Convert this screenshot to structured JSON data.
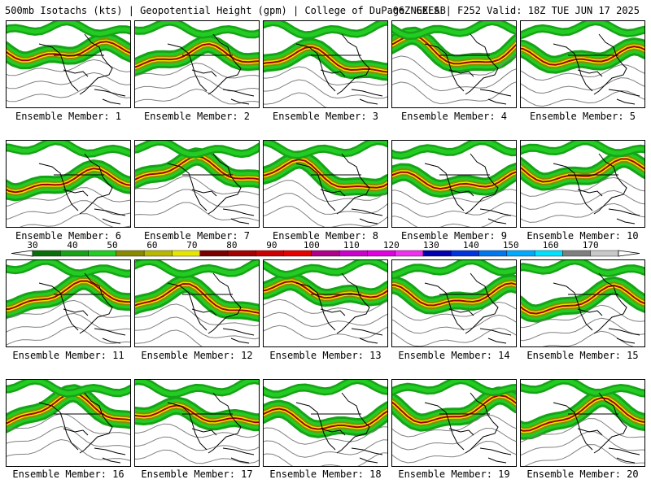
{
  "header": {
    "title_left": "500mb Isotachs (kts) | Geopotential Height (gpm) | College of DuPage NEXLAB",
    "title_right": "06Z GEFS | F252 Valid: 18Z TUE JUN 17 2025"
  },
  "members": [
    {
      "label": "Ensemble Member: 1"
    },
    {
      "label": "Ensemble Member: 2"
    },
    {
      "label": "Ensemble Member: 3"
    },
    {
      "label": "Ensemble Member: 4"
    },
    {
      "label": "Ensemble Member: 5"
    },
    {
      "label": "Ensemble Member: 6"
    },
    {
      "label": "Ensemble Member: 7"
    },
    {
      "label": "Ensemble Member: 8"
    },
    {
      "label": "Ensemble Member: 9"
    },
    {
      "label": "Ensemble Member: 10"
    },
    {
      "label": "Ensemble Member: 11"
    },
    {
      "label": "Ensemble Member: 12"
    },
    {
      "label": "Ensemble Member: 13"
    },
    {
      "label": "Ensemble Member: 14"
    },
    {
      "label": "Ensemble Member: 15"
    },
    {
      "label": "Ensemble Member: 16"
    },
    {
      "label": "Ensemble Member: 17"
    },
    {
      "label": "Ensemble Member: 18"
    },
    {
      "label": "Ensemble Member: 19"
    },
    {
      "label": "Ensemble Member: 20"
    }
  ],
  "colorbar": {
    "tick_labels": [
      "30",
      "40",
      "50",
      "60",
      "70",
      "80",
      "90",
      "100",
      "110",
      "120",
      "130",
      "140",
      "150",
      "160",
      "170"
    ],
    "colors": [
      "#0a6e0a",
      "#17a317",
      "#22cc22",
      "#8a8a00",
      "#b8b800",
      "#e6e600",
      "#7a0000",
      "#a30000",
      "#cc0000",
      "#e60000",
      "#b0008a",
      "#cc00cc",
      "#e000e0",
      "#f030f0",
      "#0000b0",
      "#0033dd",
      "#0077ee",
      "#00aaff",
      "#00e0ff",
      "#7f7f7f",
      "#c8c8c8"
    ]
  }
}
